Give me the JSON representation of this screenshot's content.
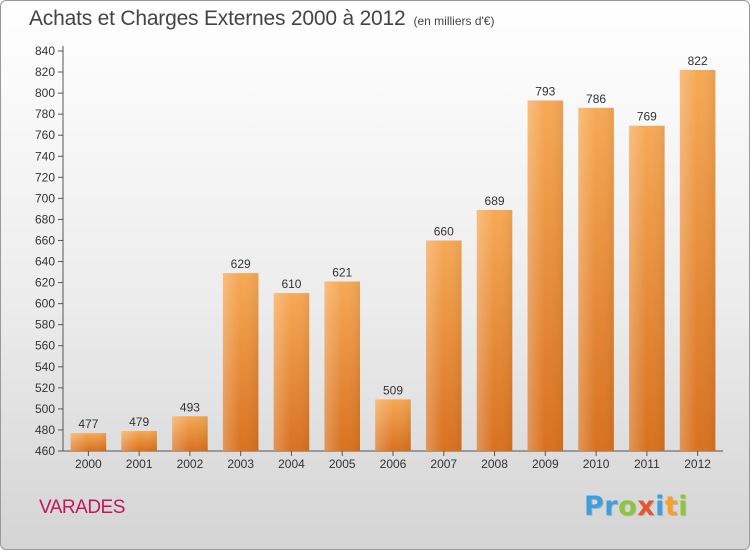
{
  "header": {
    "title": "Achats et Charges Externes 2000 à 2012",
    "unit": "(en milliers d'€)"
  },
  "commune": "VARADES",
  "logo": {
    "letters": [
      "P",
      "r",
      "o",
      "x",
      "i",
      "t",
      "i"
    ],
    "colors": [
      "#3f9fdc",
      "#3f9fdc",
      "#8cc63f",
      "#e4572e",
      "#3f9fdc",
      "#f4a22d",
      "#8cc63f"
    ]
  },
  "colors": {
    "bar_light": "#f6a955",
    "bar_dark": "#d8711f",
    "axis": "#555555",
    "grid": "#e0e0e0",
    "title": "#444444",
    "commune": "#c2185b"
  },
  "chart_data": {
    "type": "bar",
    "title": "Achats et Charges Externes 2000 à 2012",
    "subtitle": "(en milliers d'€)",
    "xlabel": "",
    "ylabel": "",
    "categories": [
      "2000",
      "2001",
      "2002",
      "2003",
      "2004",
      "2005",
      "2006",
      "2007",
      "2008",
      "2009",
      "2010",
      "2011",
      "2012"
    ],
    "values": [
      477,
      479,
      493,
      629,
      610,
      621,
      509,
      660,
      689,
      793,
      786,
      769,
      822
    ],
    "ylim": [
      460,
      840
    ],
    "ytick_step": 20,
    "grid": false,
    "legend": "none"
  }
}
